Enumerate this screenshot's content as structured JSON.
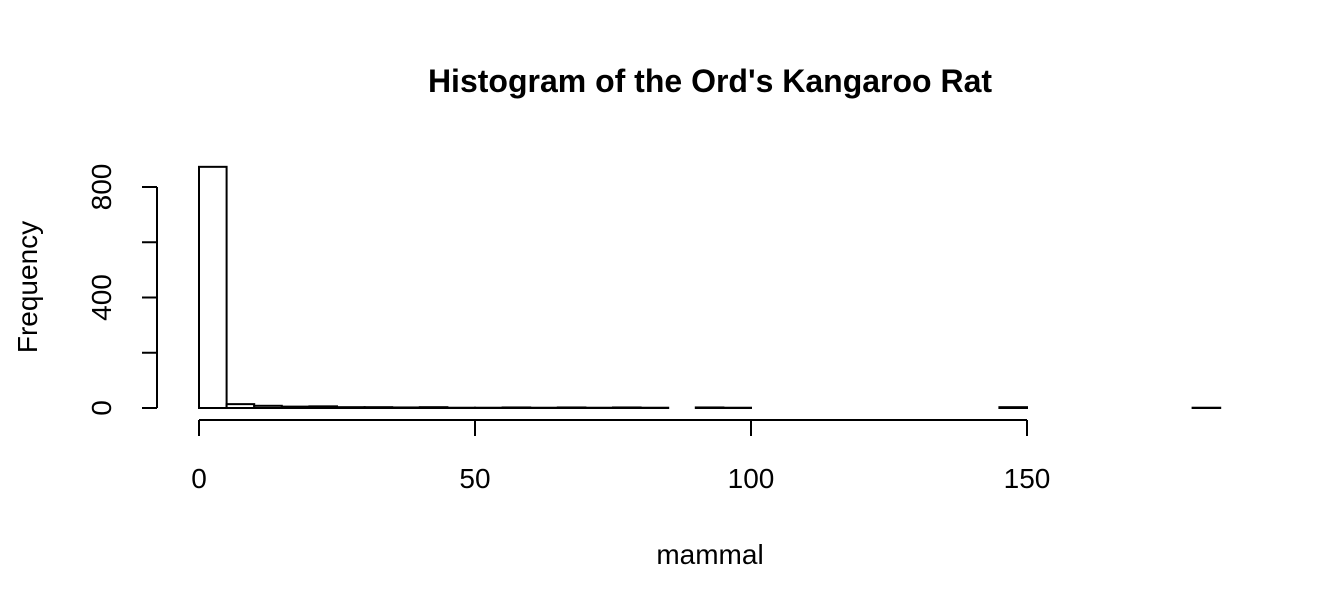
{
  "chart_data": {
    "type": "bar",
    "title": "Histogram of the Ord's Kangaroo Rat",
    "xlabel": "mammal",
    "ylabel": "Frequency",
    "xlim": [
      0,
      185
    ],
    "ylim": [
      0,
      880
    ],
    "x_ticks": [
      0,
      50,
      100,
      150
    ],
    "y_ticks": [
      0,
      200,
      400,
      600,
      800
    ],
    "y_tick_labels": [
      "0",
      "",
      "400",
      "",
      "800"
    ],
    "bin_width": 5,
    "bin_starts": [
      0,
      5,
      10,
      15,
      20,
      25,
      30,
      35,
      40,
      45,
      50,
      55,
      60,
      65,
      70,
      75,
      80,
      85,
      90,
      95,
      100,
      105,
      110,
      115,
      120,
      125,
      130,
      135,
      140,
      145,
      150,
      155,
      160,
      165,
      170,
      175,
      180
    ],
    "values": [
      873,
      14,
      8,
      5,
      6,
      3,
      3,
      2,
      3,
      1,
      1,
      2,
      1,
      2,
      1,
      2,
      1,
      0,
      2,
      1,
      0,
      0,
      0,
      0,
      0,
      0,
      0,
      0,
      0,
      3,
      0,
      0,
      0,
      0,
      0,
      0,
      1
    ],
    "grid": false,
    "legend": "none",
    "colors": {
      "bar_fill": "#ffffff",
      "bar_stroke": "#000000",
      "axis": "#000000",
      "text": "#000000"
    }
  }
}
